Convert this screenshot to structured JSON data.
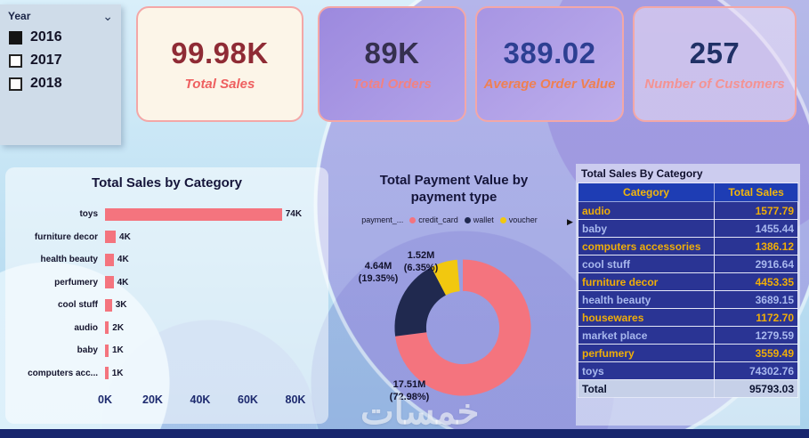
{
  "slicer": {
    "title": "Year",
    "options": [
      {
        "label": "2016",
        "checked": true
      },
      {
        "label": "2017",
        "checked": false
      },
      {
        "label": "2018",
        "checked": false
      }
    ]
  },
  "kpis": [
    {
      "value": "99.98K",
      "label": "Total Sales",
      "number_color": "#8f2b35",
      "label_color": "#ee6060"
    },
    {
      "value": "89K",
      "label": "Total Orders",
      "number_color": "#35304f",
      "label_color": "#f28282"
    },
    {
      "value": "389.02",
      "label": "Average Order Value",
      "number_color": "#2d3f92",
      "label_color": "#ef8052"
    },
    {
      "value": "257",
      "label": "Number of Customers",
      "number_color": "#203166",
      "label_color": "#f49393"
    }
  ],
  "chart_data": [
    {
      "type": "bar",
      "orientation": "horizontal",
      "title": "Total Sales by Category",
      "categories": [
        "toys",
        "furniture decor",
        "health beauty",
        "perfumery",
        "cool stuff",
        "audio",
        "baby",
        "computers acc..."
      ],
      "values": [
        74.3,
        4.5,
        3.7,
        3.6,
        2.9,
        1.6,
        1.5,
        1.4
      ],
      "value_labels": [
        "74K",
        "4K",
        "4K",
        "4K",
        "3K",
        "2K",
        "1K",
        "1K"
      ],
      "x_ticks": [
        "0K",
        "20K",
        "40K",
        "60K",
        "80K"
      ],
      "xlim": [
        0,
        80
      ],
      "bar_color": "#f4747e"
    },
    {
      "type": "donut",
      "title": "Total Payment Value by payment type",
      "legend_title": "payment_...",
      "slices": [
        {
          "name": "credit_card",
          "value_label": "17.51M",
          "pct": 72.98,
          "pct_label": "(72.98%)",
          "color": "#f4747e"
        },
        {
          "name": "wallet",
          "value_label": "4.64M",
          "pct": 19.35,
          "pct_label": "(19.35%)",
          "color": "#20294f"
        },
        {
          "name": "voucher",
          "value_label": "1.52M",
          "pct": 6.35,
          "pct_label": "(6.35%)",
          "color": "#f2c80f"
        }
      ]
    },
    {
      "type": "table",
      "title": "Total Sales By Category",
      "columns": [
        "Category",
        "Total Sales"
      ],
      "rows": [
        [
          "audio",
          "1577.79"
        ],
        [
          "baby",
          "1455.44"
        ],
        [
          "computers accessories",
          "1386.12"
        ],
        [
          "cool stuff",
          "2916.64"
        ],
        [
          "furniture decor",
          "4453.35"
        ],
        [
          "health beauty",
          "3689.15"
        ],
        [
          "housewares",
          "1172.70"
        ],
        [
          "market place",
          "1279.59"
        ],
        [
          "perfumery",
          "3559.49"
        ],
        [
          "toys",
          "74302.76"
        ]
      ],
      "total": [
        "Total",
        "95793.03"
      ]
    }
  ],
  "icons": {
    "chevron_down": "⌄",
    "legend_arrow": "▶"
  },
  "watermark": "خمسات",
  "colors": {
    "table_row_text": [
      "#f0ae08",
      "#a9b9ee"
    ],
    "table_header_bg": "#1e3db4",
    "table_row_bg": "#2a3494",
    "table_total_bg": "#c6d0e8",
    "bottom_bar": "#18266e"
  }
}
